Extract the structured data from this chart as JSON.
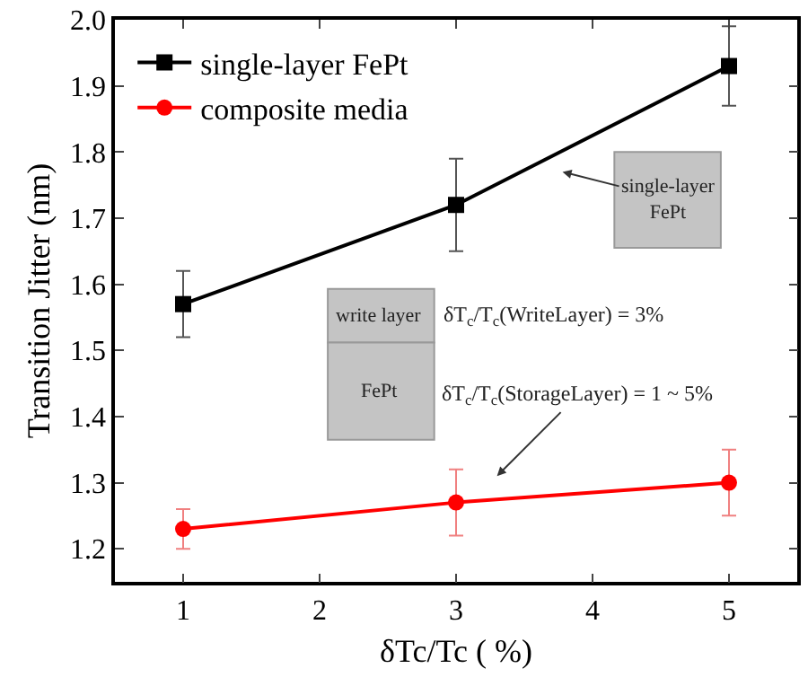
{
  "chart_data": {
    "type": "line",
    "xlabel": "δTc/Tc ( %)",
    "ylabel": "Transition Jitter (nm)",
    "x": [
      1,
      3,
      5
    ],
    "xlim": [
      0.5,
      5.5
    ],
    "xticks": [
      1,
      2,
      3,
      4,
      5
    ],
    "ylim": [
      1.15,
      2.0
    ],
    "yticks": [
      1.2,
      1.3,
      1.4,
      1.5,
      1.6,
      1.7,
      1.8,
      1.9,
      {
        "value": 2,
        "label": "2.0"
      }
    ],
    "legend": "top left",
    "series": [
      {
        "name": "single-layer FePt",
        "color": "#000000",
        "marker": "square",
        "values": [
          1.57,
          1.72,
          1.93
        ],
        "errors": [
          0.05,
          0.07,
          0.06
        ]
      },
      {
        "name": "composite media",
        "color": "#ff0000",
        "marker": "circle",
        "values": [
          1.23,
          1.27,
          1.3
        ],
        "errors": [
          0.03,
          0.05,
          0.05
        ]
      }
    ],
    "annotations": [
      "single-layer\nFePt",
      "write layer",
      "FePt",
      "δT$_{c}$/T$_{c}$(WriteLayer) = 3%",
      "δT$_{c}$/T$_{c}$(StorageLayer) = 1 ~ 5%"
    ]
  }
}
